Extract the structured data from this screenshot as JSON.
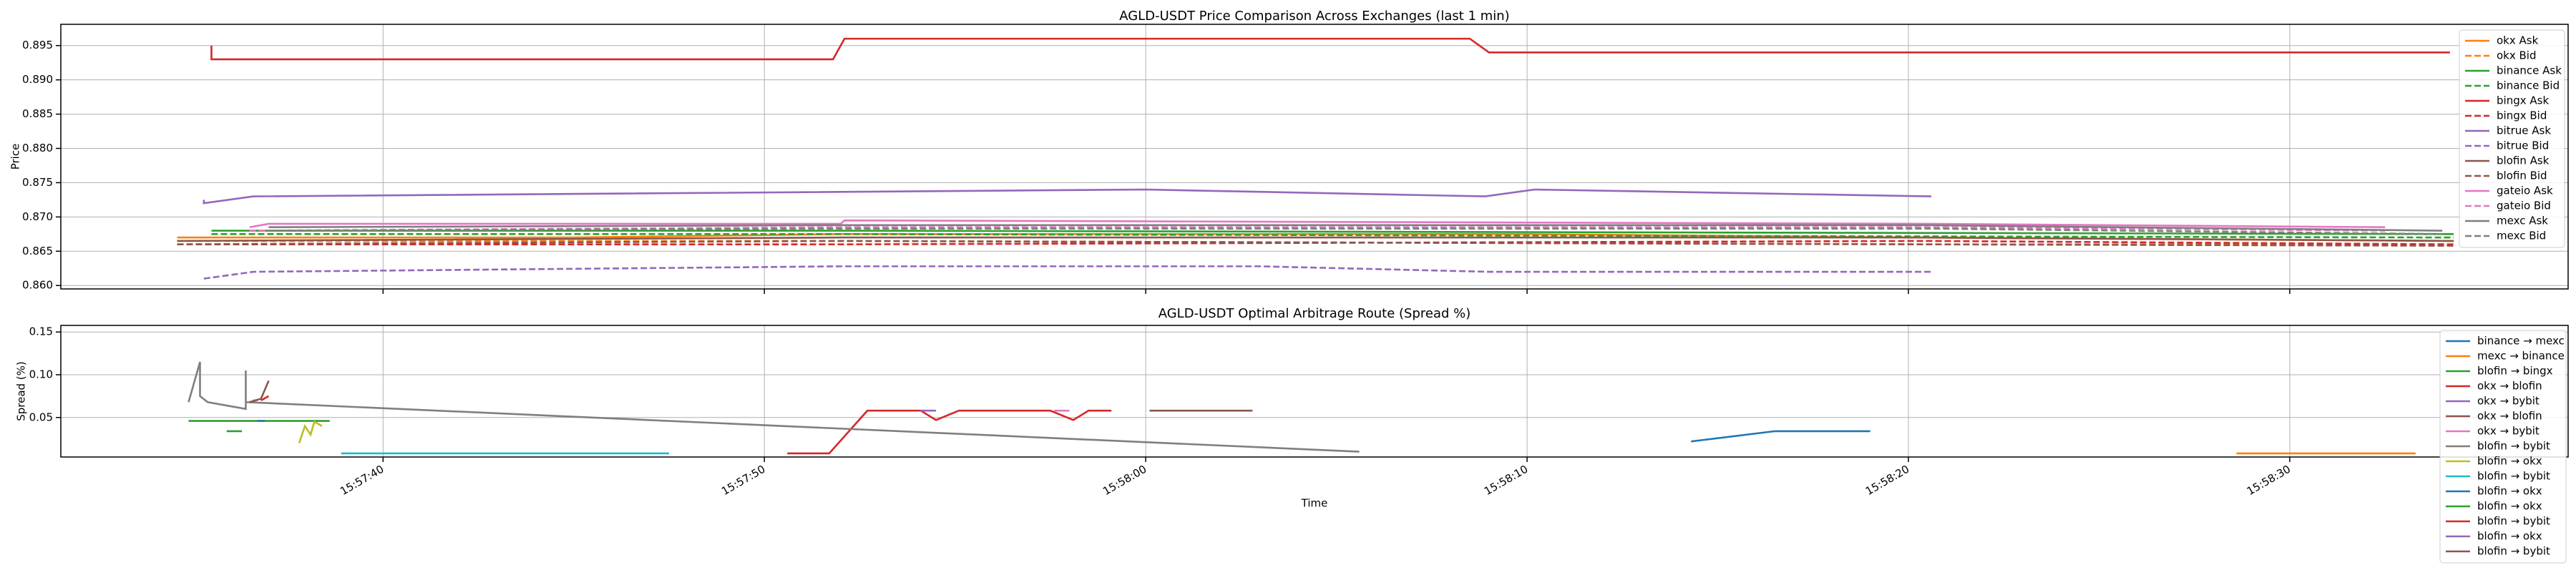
{
  "chart_data": [
    {
      "type": "line",
      "title": "AGLD-USDT Price Comparison Across Exchanges (last 1 min)",
      "ylabel": "Price",
      "xlim": [
        31.55,
        97.3
      ],
      "xticks": [
        40,
        50,
        60,
        70,
        80,
        90
      ],
      "ylim": [
        0.8595,
        0.8981
      ],
      "yticks": [
        {
          "value": 0.86,
          "label": "0.860"
        },
        {
          "value": 0.865,
          "label": "0.865"
        },
        {
          "value": 0.87,
          "label": "0.870"
        },
        {
          "value": 0.875,
          "label": "0.875"
        },
        {
          "value": 0.88,
          "label": "0.880"
        },
        {
          "value": 0.885,
          "label": "0.885"
        },
        {
          "value": 0.89,
          "label": "0.890"
        },
        {
          "value": 0.895,
          "label": "0.895"
        }
      ],
      "grid": true,
      "legend": "upper right",
      "series": [
        {
          "name": "okx Ask",
          "color": "#ff7f0e",
          "linestyle": "solid",
          "x": [
            34.6,
            45,
            52,
            70,
            80,
            94.3
          ],
          "values": [
            0.867,
            0.867,
            0.8675,
            0.8675,
            0.867,
            0.8665
          ]
        },
        {
          "name": "okx Bid",
          "color": "#ff7f0e",
          "linestyle": "dashed",
          "x": [
            34.6,
            52,
            80.5,
            94.3
          ],
          "values": [
            0.8665,
            0.8665,
            0.866,
            0.866
          ]
        },
        {
          "name": "binance Ask",
          "color": "#2ca02c",
          "linestyle": "solid",
          "x": [
            35.5,
            52,
            94.3
          ],
          "values": [
            0.868,
            0.868,
            0.8675
          ]
        },
        {
          "name": "binance Bid",
          "color": "#2ca02c",
          "linestyle": "dashed",
          "x": [
            35.5,
            52,
            94.3
          ],
          "values": [
            0.8675,
            0.8675,
            0.867
          ]
        },
        {
          "name": "bingx Ask",
          "color": "#d62728",
          "linestyle": "solid",
          "x": [
            35.5,
            35.5,
            51.8,
            52.1,
            68.5,
            69,
            94.2
          ],
          "values": [
            0.895,
            0.893,
            0.893,
            0.896,
            0.896,
            0.894,
            0.894
          ]
        },
        {
          "name": "bingx Bid",
          "color": "#d62728",
          "linestyle": "dashed",
          "x": [
            34.6,
            52,
            80.5,
            94.3
          ],
          "values": [
            0.866,
            0.866,
            0.8665,
            0.866
          ]
        },
        {
          "name": "bitrue Ask",
          "color": "#9467bd",
          "linestyle": "solid",
          "x": [
            35.3,
            35.3,
            36.6,
            60,
            68.9,
            70.2,
            80.6
          ],
          "values": [
            0.8725,
            0.872,
            0.873,
            0.874,
            0.873,
            0.874,
            0.873
          ]
        },
        {
          "name": "bitrue Bid",
          "color": "#9467bd",
          "linestyle": "dashed",
          "x": [
            35.3,
            36.6,
            52,
            63,
            69,
            80.6
          ],
          "values": [
            0.861,
            0.862,
            0.8628,
            0.8628,
            0.862,
            0.862
          ]
        },
        {
          "name": "blofin Ask",
          "color": "#8c564b",
          "linestyle": "solid",
          "x": [
            34.6,
            52,
            80.5,
            94.3
          ],
          "values": [
            0.8665,
            0.867,
            0.867,
            0.8665
          ]
        },
        {
          "name": "blofin Bid",
          "color": "#8c564b",
          "linestyle": "dashed",
          "x": [
            34.6,
            52,
            80.5,
            94.3
          ],
          "values": [
            0.866,
            0.8665,
            0.866,
            0.8658
          ]
        },
        {
          "name": "gateio Ask",
          "color": "#e377c2",
          "linestyle": "solid",
          "x": [
            36.5,
            37,
            52,
            52.1,
            80.6,
            92.5
          ],
          "values": [
            0.8685,
            0.869,
            0.869,
            0.8695,
            0.869,
            0.8685
          ]
        },
        {
          "name": "gateio Bid",
          "color": "#e377c2",
          "linestyle": "dashed",
          "x": [
            36.5,
            52,
            80.6,
            92.5
          ],
          "values": [
            0.868,
            0.8685,
            0.8685,
            0.868
          ]
        },
        {
          "name": "mexc Ask",
          "color": "#7f7f7f",
          "linestyle": "solid",
          "x": [
            37,
            52,
            80.5,
            94
          ],
          "values": [
            0.8685,
            0.8688,
            0.8688,
            0.868
          ]
        },
        {
          "name": "mexc Bid",
          "color": "#7f7f7f",
          "linestyle": "dashed",
          "x": [
            37,
            52,
            80.5,
            94
          ],
          "values": [
            0.868,
            0.8683,
            0.8683,
            0.8675
          ]
        }
      ]
    },
    {
      "type": "line",
      "title": "AGLD-USDT Optimal Arbitrage Route (Spread %)",
      "ylabel": "Spread (%)",
      "xlabel": "Time",
      "xlim": [
        31.55,
        97.3
      ],
      "xticks": [
        {
          "value": 40,
          "label": "15:57:40"
        },
        {
          "value": 50,
          "label": "15:57:50"
        },
        {
          "value": 60,
          "label": "15:58:00"
        },
        {
          "value": 70,
          "label": "15:58:10"
        },
        {
          "value": 80,
          "label": "15:58:20"
        },
        {
          "value": 90,
          "label": "15:58:30"
        }
      ],
      "ylim": [
        0.0038,
        0.1577
      ],
      "yticks": [
        0.05,
        {
          "value": 0.1,
          "label": "0.10"
        },
        0.15
      ],
      "grid": true,
      "legend": "upper right",
      "series": [
        {
          "name": "binance → mexc",
          "color": "#1f77b4",
          "x": [
            74.3,
            76.5,
            79.0
          ],
          "values": [
            0.022,
            0.034,
            0.034
          ]
        },
        {
          "name": "mexc → binance",
          "color": "#ff7f0e",
          "x": [
            88.6,
            93.3
          ],
          "values": [
            0.008,
            0.008
          ]
        },
        {
          "name": "blofin → bingx",
          "color": "#2ca02c",
          "x": [
            34.9,
            38.6
          ],
          "values": [
            0.046,
            0.046
          ]
        },
        {
          "name": "okx → blofin",
          "color": "#d62728",
          "x": [
            50.6,
            51.7,
            52.7,
            54.1,
            54.5,
            55.1,
            57.5,
            58.1,
            58.5,
            59.1
          ],
          "values": [
            0.008,
            0.008,
            0.058,
            0.058,
            0.047,
            0.058,
            0.058,
            0.047,
            0.058,
            0.058
          ]
        },
        {
          "name": "okx → bybit",
          "color": "#9467bd",
          "x": [
            54.1,
            54.5
          ],
          "values": [
            0.058,
            0.058
          ]
        },
        {
          "name": "okx → blofin",
          "color": "#8c564b",
          "x": [
            60.1,
            62.8
          ],
          "values": [
            0.058,
            0.058
          ]
        },
        {
          "name": "okx → bybit",
          "color": "#e377c2",
          "x": [
            57.6,
            58.0
          ],
          "values": [
            0.058,
            0.058
          ]
        },
        {
          "name": "blofin → bybit",
          "color": "#7f7f7f",
          "x": [
            34.9,
            35.2,
            35.2,
            35.4,
            36.4,
            36.4,
            36.4,
            65.6
          ],
          "values": [
            0.068,
            0.115,
            0.075,
            0.068,
            0.06,
            0.105,
            0.068,
            0.01
          ]
        },
        {
          "name": "blofin → okx",
          "color": "#bcbd22",
          "x": [
            37.8,
            37.95,
            38.1,
            38.2,
            38.4
          ],
          "values": [
            0.02,
            0.04,
            0.03,
            0.045,
            0.04
          ]
        },
        {
          "name": "blofin → bybit",
          "color": "#17becf",
          "x": [
            38.9,
            47.5
          ],
          "values": [
            0.008,
            0.008
          ]
        },
        {
          "name": "blofin → okx",
          "color": "#1f77b4",
          "x": [
            36.7,
            36.9
          ],
          "values": [
            0.046,
            0.046
          ]
        },
        {
          "name": "blofin → okx",
          "color": "#2ca02c",
          "x": [
            35.9,
            36.3
          ],
          "values": [
            0.034,
            0.034
          ]
        },
        {
          "name": "blofin → bybit",
          "color": "#d62728",
          "x": [
            36.8,
            37.0
          ],
          "values": [
            0.07,
            0.075
          ]
        },
        {
          "name": "blofin → okx",
          "color": "#9467bd",
          "x": [
            36.6,
            36.7
          ],
          "values": [
            0.07,
            0.07
          ]
        },
        {
          "name": "blofin → bybit",
          "color": "#8c564b",
          "x": [
            36.5,
            36.8,
            37.0
          ],
          "values": [
            0.068,
            0.072,
            0.093
          ]
        }
      ]
    }
  ]
}
